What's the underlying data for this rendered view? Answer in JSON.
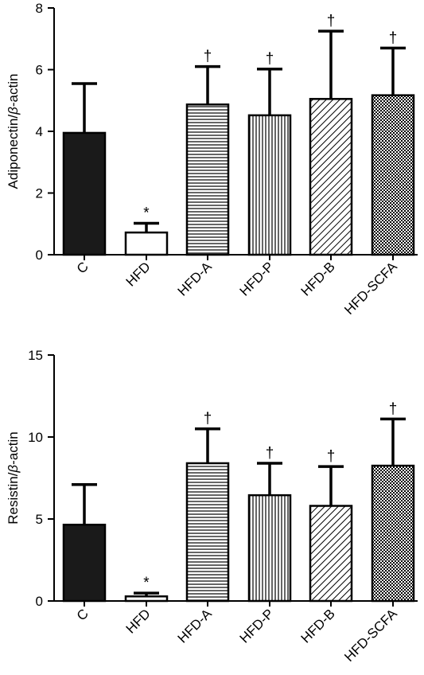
{
  "chart_data": [
    {
      "type": "bar",
      "categories": [
        "C",
        "HFD",
        "HFD-A",
        "HFD-P",
        "HFD-B",
        "HFD-SCFA"
      ],
      "values": [
        3.95,
        0.72,
        4.87,
        4.52,
        5.05,
        5.17
      ],
      "error": [
        1.6,
        0.3,
        1.23,
        1.5,
        2.2,
        1.53
      ],
      "annotations": [
        "",
        "*",
        "†",
        "†",
        "†",
        "†"
      ],
      "patterns": [
        "solid",
        "empty",
        "horizontal",
        "vertical",
        "diagonal",
        "checker"
      ],
      "title": "",
      "xlabel": "",
      "ylabel_main": "Adiponectin/",
      "ylabel_italic": "β",
      "ylabel_tail": "-actin",
      "ylim": [
        0,
        8
      ],
      "yticks": [
        0,
        2,
        4,
        6,
        8
      ],
      "grid": false
    },
    {
      "type": "bar",
      "categories": [
        "C",
        "HFD",
        "HFD-A",
        "HFD-P",
        "HFD-B",
        "HFD-SCFA"
      ],
      "values": [
        4.65,
        0.28,
        8.4,
        6.45,
        5.8,
        8.25
      ],
      "error": [
        2.45,
        0.2,
        2.1,
        1.95,
        2.4,
        2.85
      ],
      "annotations": [
        "",
        "*",
        "†",
        "†",
        "†",
        "†"
      ],
      "patterns": [
        "solid",
        "empty",
        "horizontal",
        "vertical",
        "diagonal",
        "checker"
      ],
      "title": "",
      "xlabel": "",
      "ylabel_main": "Resistin/",
      "ylabel_italic": "β",
      "ylabel_tail": "-actin",
      "ylim": [
        0,
        15
      ],
      "yticks": [
        0,
        5,
        10,
        15
      ],
      "grid": false
    }
  ]
}
